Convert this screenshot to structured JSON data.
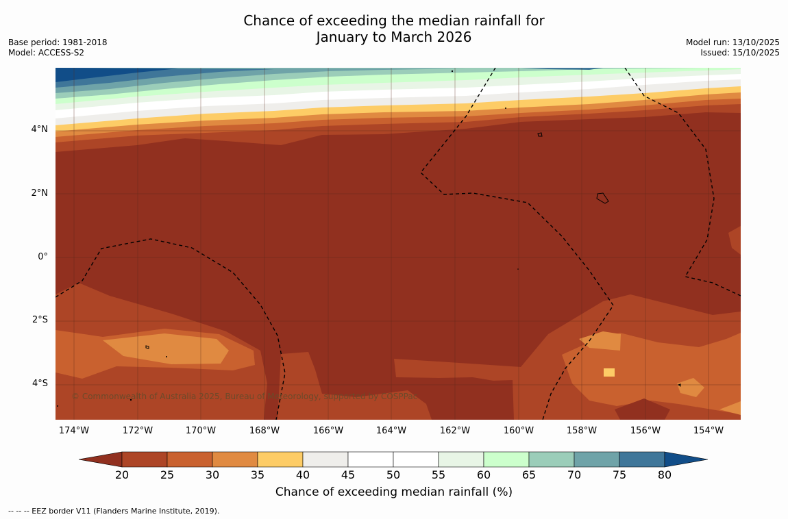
{
  "header": {
    "title_line1": "Chance of exceeding the median rainfall for",
    "title_line2": "January to March 2026",
    "base_period": "Base period: 1981-2018",
    "model": "Model: ACCESS-S2",
    "model_run": "Model run: 13/10/2025",
    "issued": "Issued: 15/10/2025"
  },
  "map": {
    "lat_labels": [
      "4°N",
      "2°N",
      "0°",
      "2°S",
      "4°S"
    ],
    "lon_labels": [
      "174°W",
      "172°W",
      "170°W",
      "168°W",
      "166°W",
      "164°W",
      "162°W",
      "160°W",
      "158°W",
      "156°W",
      "154°W"
    ],
    "copyright": "© Commonwealth of Australia 2025, Bureau of Meteorology, supported by COSPPac",
    "colors": {
      "dark_brown": "#91301f",
      "brown": "#ad4526",
      "orange_brown": "#c9612f",
      "orange": "#e08a41",
      "yellow": "#fdcc66",
      "light_grey": "#efeeeb",
      "white": "#ffffff",
      "pale_green": "#e8f5e6",
      "light_green": "#ccffcc",
      "seafoam": "#9bcdb9",
      "teal": "#6fa3a8",
      "steel_blue": "#3f7699",
      "navy": "#114d88",
      "eez_border": "#000000"
    }
  },
  "colorbar": {
    "ticks": [
      "20",
      "25",
      "30",
      "35",
      "40",
      "45",
      "50",
      "55",
      "60",
      "65",
      "70",
      "75",
      "80"
    ],
    "colors": [
      "#91301f",
      "#ad4526",
      "#c9612f",
      "#e08a41",
      "#fdcc66",
      "#efeeeb",
      "#ffffff",
      "#ffffff",
      "#e8f5e6",
      "#ccffcc",
      "#9bcdb9",
      "#6fa3a8",
      "#3f7699",
      "#114d88"
    ],
    "label": "Chance of exceeding median rainfall (%)"
  },
  "footnote": "--  --  -- EEZ border V11 (Flanders Marine Institute, 2019)."
}
